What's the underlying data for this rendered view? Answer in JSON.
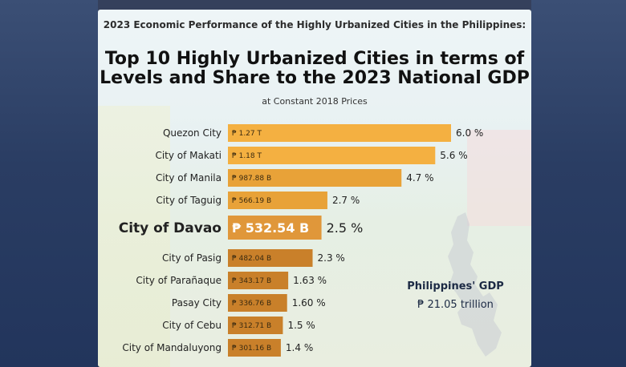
{
  "header": {
    "top_line": "2023 Economic Performance of the Highly Urbanized Cities in the Philippines:",
    "title_line1": "Top 10 Highly Urbanized Cities in terms of",
    "title_line2": "Levels and Share to the 2023 National GDP",
    "subtitle": "at Constant 2018 Prices"
  },
  "gdp_box": {
    "label": "Philippines' GDP",
    "value": "₱ 21.05 trillion"
  },
  "colors": {
    "bar_light": "#f4b041",
    "bar_mid": "#e8a238",
    "bar_dark": "#c9802a",
    "highlight_bar": "#e0973a"
  },
  "chart_data": {
    "type": "bar",
    "orientation": "horizontal",
    "categories": [
      "Quezon City",
      "City of Makati",
      "City of Manila",
      "City of Taguig",
      "City of Davao",
      "City of Pasig",
      "City of Parañaque",
      "Pasay City",
      "City of Cebu",
      "City of Mandaluyong"
    ],
    "values": [
      1270,
      1180,
      987.88,
      566.19,
      532.54,
      482.04,
      343.17,
      336.76,
      312.71,
      301.16
    ],
    "value_labels": [
      "₱ 1.27 T",
      "₱ 1.18 T",
      "₱ 987.88 B",
      "₱ 566.19 B",
      "₱ 532.54 B",
      "₱ 482.04 B",
      "₱ 343.17 B",
      "₱ 336.76 B",
      "₱ 312.71 B",
      "₱ 301.16 B"
    ],
    "shares": [
      "6.0 %",
      "5.6 %",
      "4.7 %",
      "2.7 %",
      "2.5 %",
      "2.3 %",
      "1.63 %",
      "1.60 %",
      "1.5 %",
      "1.4 %"
    ],
    "highlight": "City of Davao",
    "unit": "₱ billions"
  }
}
